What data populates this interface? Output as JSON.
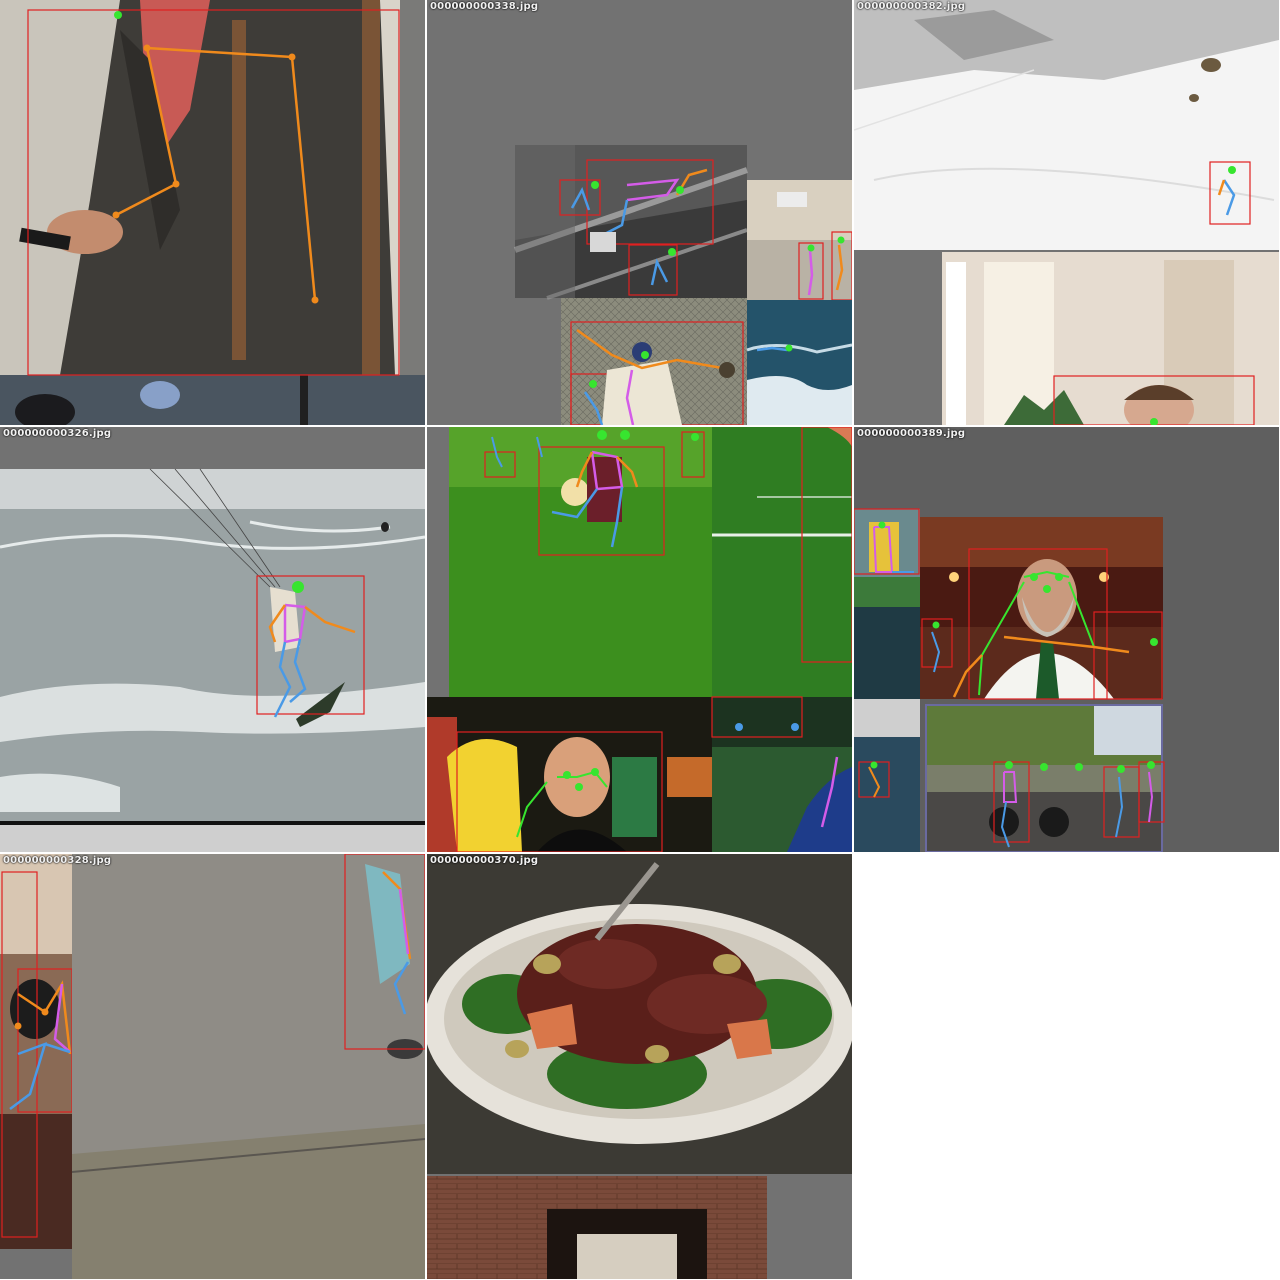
{
  "mosaic": {
    "tiles": [
      {
        "filename": "",
        "scene": "man in grey blazer holding a phone",
        "tile_id": "a"
      },
      {
        "filename": "000000000338.jpg",
        "scene": "collage: skatepark, kitchen, baseball, surf",
        "tile_id": "b"
      },
      {
        "filename": "000000000382.jpg",
        "scene": "snowy mountain skier and woman in bright room",
        "tile_id": "c"
      },
      {
        "filename": "000000000326.jpg",
        "scene": "kitesurfer on rough sea",
        "tile_id": "d"
      },
      {
        "filename": "",
        "scene": "soccer on grass and man with bananas",
        "tile_id": "e"
      },
      {
        "filename": "000000000389.jpg",
        "scene": "bearded man in tie and motorcycle street",
        "tile_id": "f"
      },
      {
        "filename": "000000000328.jpg",
        "scene": "skateboarder next to concrete wall",
        "tile_id": "g"
      },
      {
        "filename": "000000000370.jpg",
        "scene": "plate of beef and broccoli",
        "tile_id": "h"
      }
    ]
  },
  "colors": {
    "bbox": "#e02020",
    "arm": "#f08a1c",
    "leg": "#4a9ae6",
    "torso": "#d45ce8",
    "face": "#37e52f",
    "padding": "#727272"
  }
}
